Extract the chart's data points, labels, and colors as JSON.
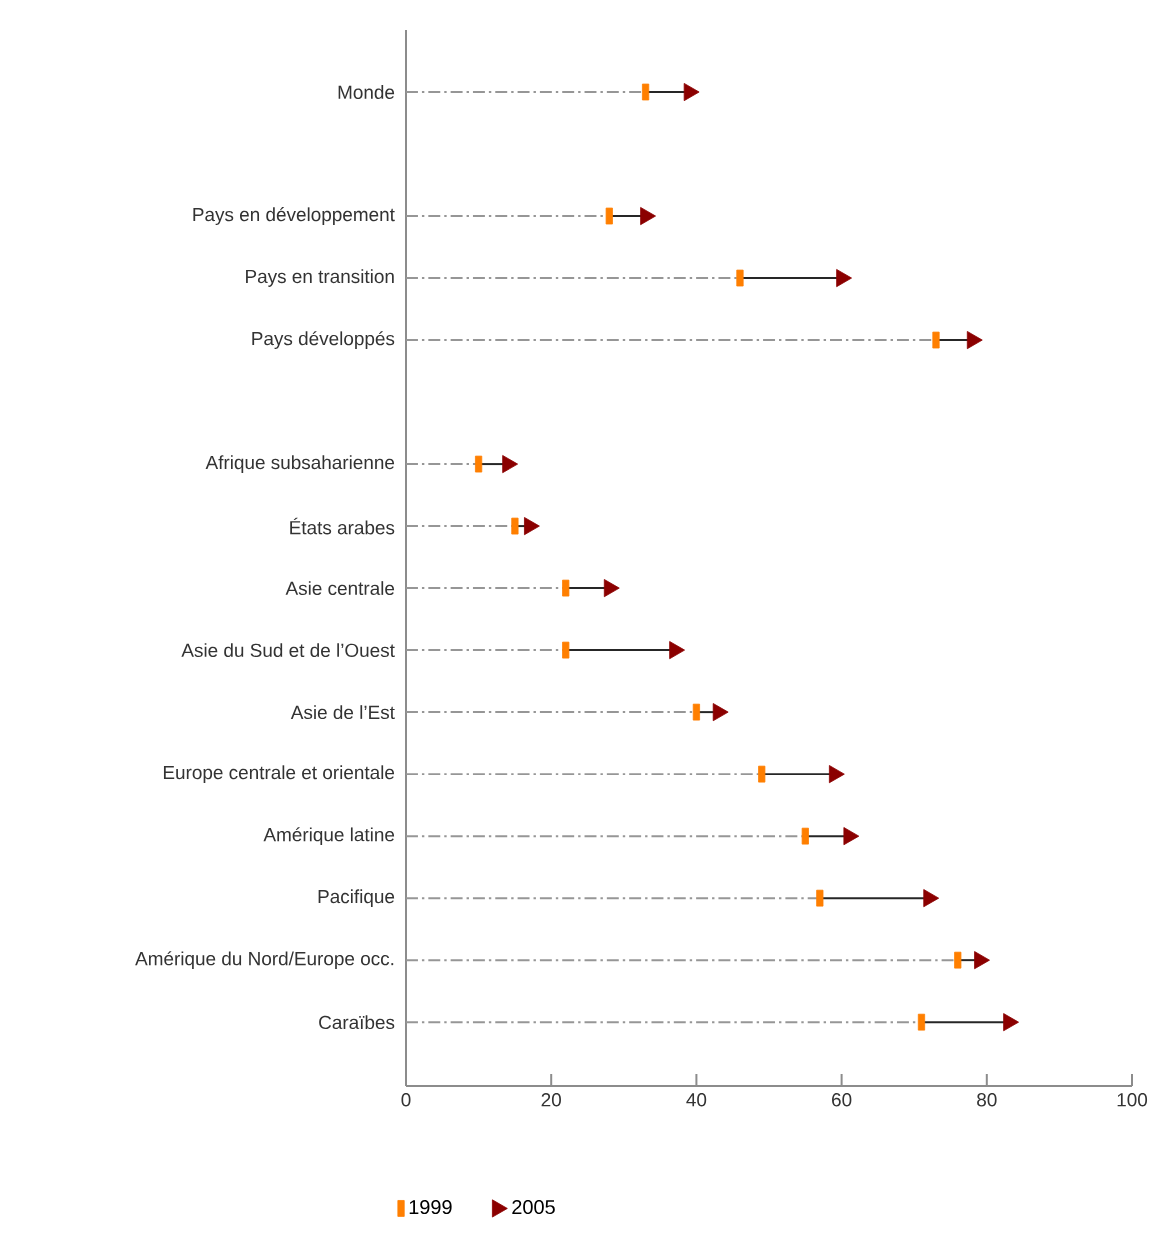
{
  "chart_data": {
    "type": "scatter",
    "orientation": "horizontal",
    "categories": [
      "Monde",
      null,
      "Pays en développement",
      "Pays en transition",
      "Pays développés",
      null,
      "Afrique subsaharienne",
      "États arabes",
      "Asie centrale",
      "Asie du Sud et de l’Ouest",
      "Asie de l’Est",
      "Europe centrale et orientale",
      "Amérique latine",
      "Pacifique",
      "Amérique du Nord/Europe occ.",
      "Caraïbes"
    ],
    "series": [
      {
        "name": "1999",
        "color": "#ff7f00",
        "values": [
          33,
          null,
          28,
          46,
          73,
          null,
          10,
          15,
          22,
          22,
          40,
          49,
          55,
          57,
          76,
          71
        ]
      },
      {
        "name": "2005",
        "marker": "triangle",
        "color": "#8b0000",
        "values": [
          39,
          null,
          33,
          60,
          78,
          null,
          14,
          17,
          28,
          37,
          43,
          59,
          61,
          72,
          79,
          83
        ]
      }
    ],
    "xlim": [
      0,
      100
    ],
    "xticks": [
      0,
      20,
      40,
      60,
      80,
      100
    ],
    "legend": "bottom left",
    "grid": "y"
  }
}
